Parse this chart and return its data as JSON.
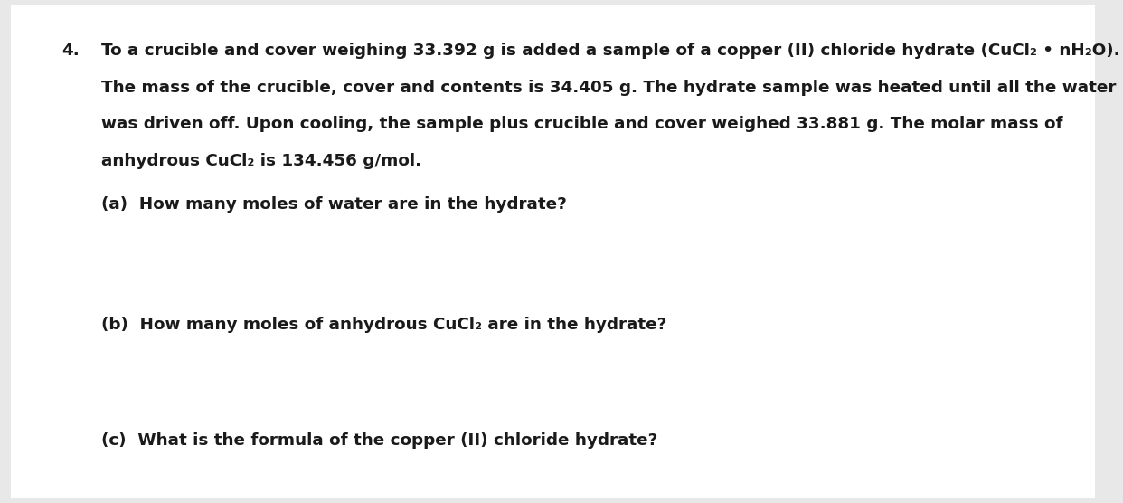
{
  "background_color": "#e8e8e8",
  "page_background": "#ffffff",
  "number": "4.",
  "paragraph_line1": "To a crucible and cover weighing 33.392 g is added a sample of a copper (II) chloride hydrate (CuCl₂ • nH₂O).",
  "paragraph_line2": "The mass of the crucible, cover and contents is 34.405 g. The hydrate sample was heated until all the water",
  "paragraph_line3": "was driven off. Upon cooling, the sample plus crucible and cover weighed 33.881 g. The molar mass of",
  "paragraph_line4": "anhydrous CuCl₂ is 134.456 g/mol.",
  "part_a": "(a)  How many moles of water are in the hydrate?",
  "part_b": "(b)  How many moles of anhydrous CuCl₂ are in the hydrate?",
  "part_c": "(c)  What is the formula of the copper (II) chloride hydrate?",
  "font_size_main": 13.2,
  "font_size_parts": 13.2,
  "text_color": "#1a1a1a",
  "font_family": "DejaVu Sans"
}
